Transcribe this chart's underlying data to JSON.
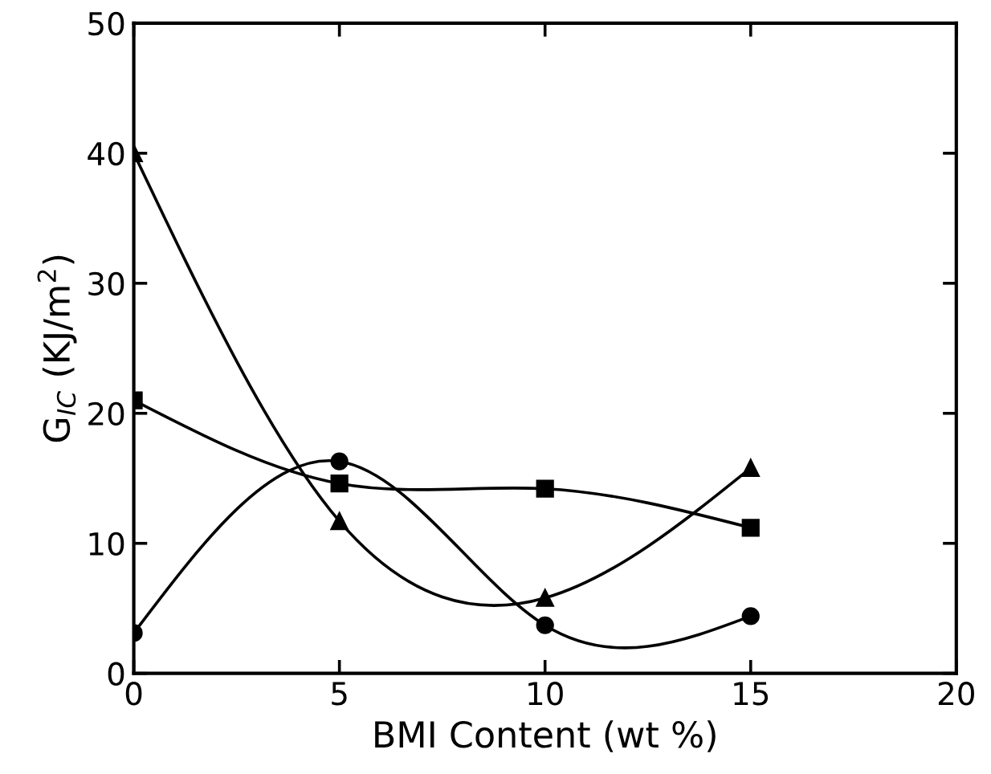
{
  "chart_data": {
    "type": "line",
    "xlabel": "BMI Content (wt %)",
    "ylabel": "G$_{IC}$ (KJ/m$^{2}$)",
    "x": [
      0,
      5,
      10,
      15
    ],
    "series": [
      {
        "color": "#000000",
        "marker": "triangle",
        "values": [
          40,
          11.7,
          5.8,
          15.8
        ]
      },
      {
        "color": "#000000",
        "marker": "square",
        "values": [
          21,
          14.6,
          14.2,
          11.2
        ]
      },
      {
        "color": "#000000",
        "marker": "circle",
        "values": [
          3.1,
          16.3,
          3.7,
          4.4
        ]
      }
    ],
    "xlim": [
      0,
      20
    ],
    "ylim": [
      0,
      50
    ],
    "xticks": [
      0,
      5,
      10,
      15,
      20
    ],
    "yticks": [
      0,
      10,
      20,
      30,
      40,
      50
    ],
    "grid": false,
    "legend": false,
    "line_style": "solid"
  }
}
